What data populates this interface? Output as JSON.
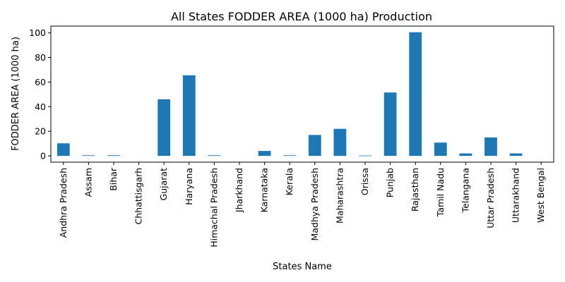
{
  "chart_data": {
    "type": "bar",
    "title": "All States FODDER AREA (1000 ha) Production",
    "xlabel": "States Name",
    "ylabel": "FODDER AREA (1000 ha)",
    "categories": [
      "Andhra Pradesh",
      "Assam",
      "Bihar",
      "Chhattisgarh",
      "Gujarat",
      "Haryana",
      "Himachal Pradesh",
      "Jharkhand",
      "Karnataka",
      "Kerala",
      "Madhya Pradesh",
      "Maharashtra",
      "Orissa",
      "Punjab",
      "Rajasthan",
      "Tamil Nadu",
      "Telangana",
      "Uttar Pradesh",
      "Uttarakhand",
      "West Bengal"
    ],
    "values": [
      10.2,
      0.5,
      0.5,
      0,
      46,
      65.5,
      0.5,
      0,
      4,
      0.5,
      17,
      22,
      0.3,
      51.5,
      100.5,
      10.8,
      2,
      15,
      2,
      0
    ],
    "yticks": [
      "0",
      "20",
      "40",
      "60",
      "80",
      "100"
    ],
    "ylim": [
      -5.1,
      105.5
    ],
    "grid": false,
    "legend": "none",
    "bar_color": "#1f77b4"
  }
}
